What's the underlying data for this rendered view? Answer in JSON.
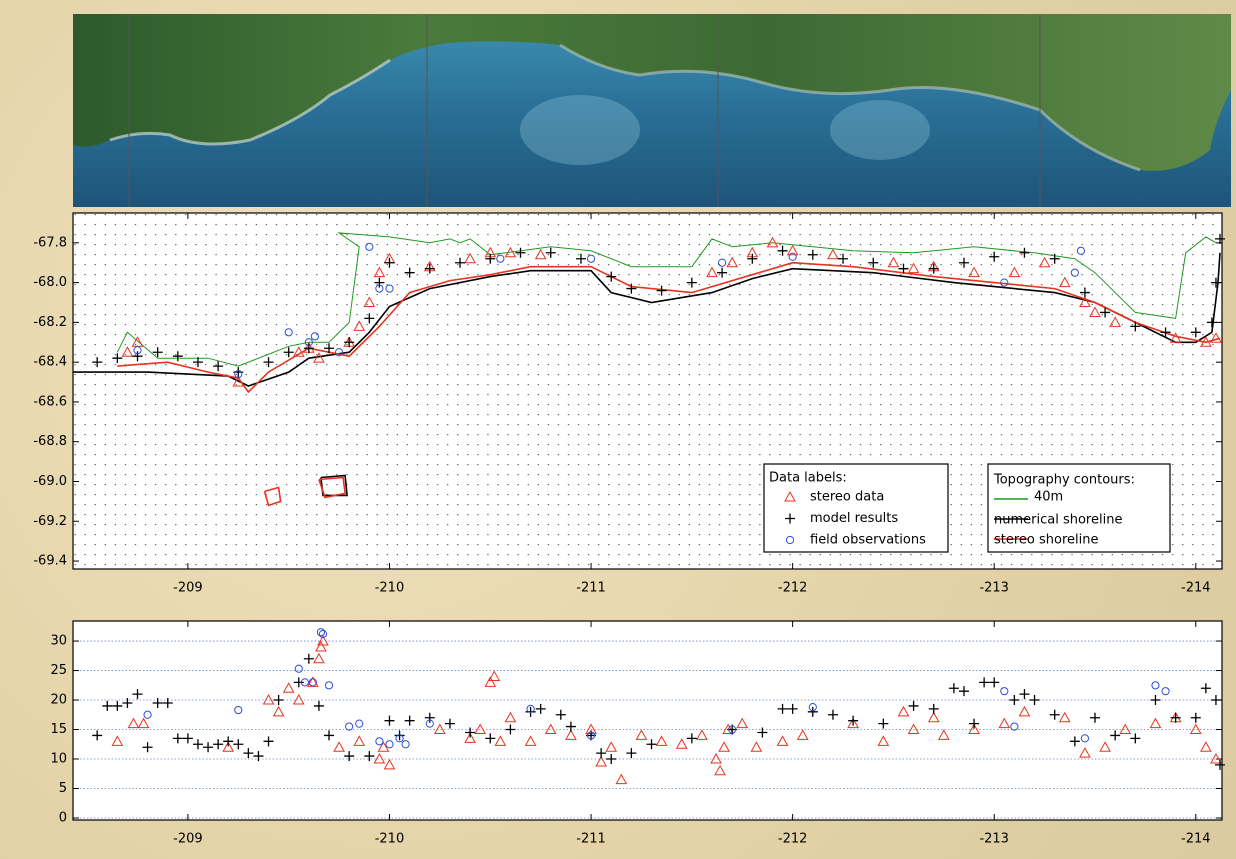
{
  "chart_data": [
    {
      "type": "map",
      "legend": "lower right",
      "grid": false,
      "xlim": [
        -208.43,
        -214.13
      ],
      "xticks": [
        -209,
        -210,
        -211,
        -212,
        -213,
        -214
      ],
      "ylim": [
        -69.44,
        -67.65
      ],
      "yticks": [
        -67.8,
        {
          "value": -68,
          "label": "-68.0"
        },
        -68.2,
        -68.4,
        -68.6,
        -68.8,
        {
          "value": -69,
          "label": "-69.0"
        },
        -69.2,
        -69.4
      ],
      "legend_title": "Data labels:",
      "series": [
        {
          "name": "stereo data",
          "color": "#e8331f",
          "marker": "triangle",
          "x": [
            -208.7,
            -208.75,
            -209.25,
            -209.55,
            -209.6,
            -209.65,
            -209.8,
            -209.85,
            -209.9,
            -209.95,
            -210.0,
            -210.2,
            -210.4,
            -210.5,
            -210.6,
            -210.75,
            -211.6,
            -211.7,
            -211.8,
            -211.9,
            -212.0,
            -212.2,
            -212.5,
            -212.6,
            -212.7,
            -212.9,
            -213.1,
            -213.25,
            -213.35,
            -213.45,
            -213.5,
            -213.6,
            -213.9,
            -214.05,
            -214.1
          ],
          "values": [
            -68.35,
            -68.3,
            -68.5,
            -68.35,
            -68.33,
            -68.38,
            -68.3,
            -68.22,
            -68.1,
            -67.95,
            -67.88,
            -67.92,
            -67.88,
            -67.85,
            -67.85,
            -67.86,
            -67.95,
            -67.9,
            -67.85,
            -67.8,
            -67.84,
            -67.86,
            -67.9,
            -67.93,
            -67.92,
            -67.95,
            -67.95,
            -67.9,
            -68.0,
            -68.1,
            -68.15,
            -68.2,
            -68.28,
            -68.3,
            -68.28
          ]
        },
        {
          "name": "model results",
          "color": "#000000",
          "marker": "plus",
          "x": [
            -208.55,
            -208.65,
            -208.75,
            -208.85,
            -208.95,
            -209.05,
            -209.15,
            -209.25,
            -209.4,
            -209.5,
            -209.6,
            -209.7,
            -209.8,
            -209.9,
            -209.95,
            -210.0,
            -210.1,
            -210.2,
            -210.35,
            -210.5,
            -210.65,
            -210.8,
            -210.95,
            -211.1,
            -211.2,
            -211.35,
            -211.5,
            -211.65,
            -211.8,
            -211.95,
            -212.1,
            -212.25,
            -212.4,
            -212.55,
            -212.7,
            -212.85,
            -213.0,
            -213.15,
            -213.3,
            -213.45,
            -213.55,
            -213.7,
            -213.85,
            -214.0,
            -214.08,
            -214.1,
            -214.12
          ],
          "values": [
            -68.4,
            -68.38,
            -68.37,
            -68.35,
            -68.37,
            -68.4,
            -68.42,
            -68.45,
            -68.4,
            -68.35,
            -68.33,
            -68.33,
            -68.3,
            -68.18,
            -68.0,
            -67.9,
            -67.95,
            -67.93,
            -67.9,
            -67.88,
            -67.85,
            -67.85,
            -67.88,
            -67.97,
            -68.03,
            -68.04,
            -68.0,
            -67.95,
            -67.88,
            -67.84,
            -67.86,
            -67.88,
            -67.9,
            -67.93,
            -67.93,
            -67.9,
            -67.87,
            -67.85,
            -67.88,
            -68.05,
            -68.15,
            -68.22,
            -68.25,
            -68.25,
            -68.2,
            -68.0,
            -67.78
          ]
        },
        {
          "name": "field observations",
          "color": "#2a4fd6",
          "marker": "circle",
          "x": [
            -208.75,
            -209.25,
            -209.5,
            -209.6,
            -209.63,
            -209.75,
            -209.9,
            -209.95,
            -210.0,
            -210.55,
            -211.0,
            -211.65,
            -212.0,
            -213.05,
            -213.4,
            -213.43
          ],
          "values": [
            -68.34,
            -68.46,
            -68.25,
            -68.3,
            -68.27,
            -68.35,
            -67.82,
            -68.03,
            -68.03,
            -67.88,
            -67.88,
            -67.9,
            -67.87,
            -68.0,
            -67.95,
            -67.84
          ]
        }
      ],
      "lines_legend_title": "Topography contours:",
      "lines": [
        {
          "name": "40m",
          "color": "#1f9a1f",
          "x": [
            -208.65,
            -208.7,
            -208.85,
            -209.1,
            -209.25,
            -209.5,
            -209.6,
            -209.7,
            -209.8,
            -209.85,
            -209.75,
            -210.0,
            -210.2,
            -210.3,
            -210.35,
            -210.4,
            -210.5,
            -210.8,
            -211.0,
            -211.2,
            -211.5,
            -211.6,
            -211.7,
            -211.9,
            -212.3,
            -212.6,
            -212.9,
            -213.2,
            -213.4,
            -213.5,
            -213.7,
            -213.9,
            -213.95,
            -214.05,
            -214.1
          ],
          "values": [
            -68.35,
            -68.25,
            -68.38,
            -68.38,
            -68.42,
            -68.32,
            -68.3,
            -68.3,
            -68.2,
            -67.82,
            -67.75,
            -67.77,
            -67.8,
            -67.78,
            -67.8,
            -67.78,
            -67.86,
            -67.82,
            -67.84,
            -67.92,
            -67.92,
            -67.78,
            -67.82,
            -67.8,
            -67.84,
            -67.85,
            -67.82,
            -67.85,
            -67.88,
            -67.95,
            -68.15,
            -68.18,
            -67.85,
            -67.77,
            -67.8
          ]
        },
        {
          "name": "numerical shoreline",
          "color": "#000000",
          "x": [
            -208.43,
            -208.8,
            -209.2,
            -209.3,
            -209.5,
            -209.6,
            -209.8,
            -209.9,
            -210.0,
            -210.2,
            -210.5,
            -210.7,
            -211.0,
            -211.1,
            -211.3,
            -211.6,
            -211.8,
            -212.0,
            -212.4,
            -212.8,
            -213.0,
            -213.3,
            -213.5,
            -213.7,
            -213.9,
            -214.0,
            -214.08,
            -214.11,
            -214.12,
            null,
            -209.66,
            -209.78,
            -209.79,
            -209.67,
            -209.66
          ],
          "values": [
            -68.45,
            -68.45,
            -68.47,
            -68.52,
            -68.45,
            -68.38,
            -68.35,
            -68.25,
            -68.12,
            -68.03,
            -67.97,
            -67.94,
            -67.94,
            -68.05,
            -68.1,
            -68.05,
            -67.98,
            -67.93,
            -67.95,
            -68.0,
            -68.02,
            -68.05,
            -68.1,
            -68.2,
            -68.3,
            -68.3,
            -68.25,
            -68.0,
            -67.85,
            null,
            -68.98,
            -68.97,
            -69.07,
            -69.07,
            -68.98
          ]
        },
        {
          "name": "stereo shoreline",
          "color": "#e8331f",
          "x": [
            -208.65,
            -208.9,
            -209.1,
            -209.25,
            -209.3,
            -209.4,
            -209.6,
            -209.8,
            -209.95,
            -210.1,
            -210.3,
            -210.5,
            -210.7,
            -211.0,
            -211.2,
            -211.5,
            -211.8,
            -212.0,
            -212.3,
            -212.7,
            -213.0,
            -213.3,
            -213.5,
            -213.7,
            -213.9,
            -214.05,
            -214.12,
            null,
            -209.38,
            -209.45,
            -209.46,
            -209.4,
            -209.38,
            null,
            -209.65,
            -209.77,
            -209.78,
            -209.68,
            -209.65
          ],
          "values": [
            -68.42,
            -68.4,
            -68.45,
            -68.48,
            -68.55,
            -68.45,
            -68.33,
            -68.37,
            -68.22,
            -68.05,
            -67.99,
            -67.96,
            -67.92,
            -67.92,
            -68.02,
            -68.05,
            -67.96,
            -67.9,
            -67.92,
            -67.97,
            -68.0,
            -68.03,
            -68.1,
            -68.2,
            -68.27,
            -68.3,
            -68.28,
            null,
            -69.05,
            -69.03,
            -69.1,
            -69.12,
            -69.05,
            null,
            -68.99,
            -68.98,
            -69.06,
            -69.08,
            -68.99
          ]
        }
      ]
    },
    {
      "type": "scatter",
      "grid": true,
      "xlim": [
        -208.43,
        -214.13
      ],
      "xticks": [
        -209,
        -210,
        -211,
        -212,
        -213,
        -214
      ],
      "ylim": [
        -0.34,
        33.4
      ],
      "yticks": [
        0,
        5,
        10,
        15,
        20,
        25,
        30
      ],
      "series": [
        {
          "color": "#e8331f",
          "marker": "triangle",
          "x": [
            -208.65,
            -208.73,
            -208.78,
            -209.2,
            -209.4,
            -209.45,
            -209.5,
            -209.55,
            -209.62,
            -209.65,
            -209.66,
            -209.67,
            -209.75,
            -209.85,
            -209.95,
            -209.97,
            -210.0,
            -210.25,
            -210.4,
            -210.45,
            -210.5,
            -210.52,
            -210.55,
            -210.6,
            -210.7,
            -210.8,
            -210.9,
            -211.0,
            -211.05,
            -211.1,
            -211.15,
            -211.25,
            -211.35,
            -211.45,
            -211.55,
            -211.62,
            -211.64,
            -211.66,
            -211.68,
            -211.75,
            -211.82,
            -211.95,
            -212.05,
            -212.3,
            -212.45,
            -212.55,
            -212.6,
            -212.7,
            -212.75,
            -212.9,
            -213.05,
            -213.15,
            -213.35,
            -213.45,
            -213.55,
            -213.65,
            -213.8,
            -213.9,
            -214.0,
            -214.05,
            -214.1
          ],
          "values": [
            13,
            16,
            16,
            12,
            20,
            18,
            22,
            20,
            23,
            27,
            29,
            30,
            12,
            13,
            10,
            12,
            9,
            15,
            13.5,
            15,
            23,
            24,
            13,
            17,
            13,
            15,
            14,
            15,
            9.5,
            12,
            6.5,
            14,
            13,
            12.5,
            14,
            10,
            8,
            12,
            15,
            16,
            12,
            13,
            14,
            16,
            13,
            18,
            15,
            17,
            14,
            15,
            16,
            18,
            17,
            11,
            12,
            15,
            16,
            17,
            15,
            12,
            10
          ]
        },
        {
          "color": "#000000",
          "marker": "plus",
          "x": [
            -208.55,
            -208.6,
            -208.65,
            -208.7,
            -208.75,
            -208.8,
            -208.85,
            -208.9,
            -208.95,
            -209.0,
            -209.05,
            -209.1,
            -209.15,
            -209.2,
            -209.25,
            -209.3,
            -209.35,
            -209.4,
            -209.45,
            -209.55,
            -209.6,
            -209.65,
            -209.7,
            -209.8,
            -209.9,
            -210.0,
            -210.05,
            -210.1,
            -210.2,
            -210.3,
            -210.4,
            -210.5,
            -210.6,
            -210.7,
            -210.75,
            -210.85,
            -210.9,
            -211.0,
            -211.05,
            -211.1,
            -211.2,
            -211.3,
            -211.5,
            -211.7,
            -211.85,
            -211.95,
            -212.0,
            -212.1,
            -212.2,
            -212.3,
            -212.45,
            -212.6,
            -212.7,
            -212.8,
            -212.85,
            -212.9,
            -212.95,
            -213.0,
            -213.1,
            -213.15,
            -213.2,
            -213.3,
            -213.4,
            -213.5,
            -213.6,
            -213.7,
            -213.8,
            -213.9,
            -214.0,
            -214.05,
            -214.1,
            -214.12
          ],
          "values": [
            14,
            19,
            19,
            19.5,
            21,
            12,
            19.5,
            19.5,
            13.5,
            13.5,
            12.5,
            12,
            12.5,
            13,
            12.5,
            11,
            10.5,
            13,
            20,
            23,
            27,
            19,
            14,
            10.5,
            10.5,
            16.5,
            14,
            16.5,
            17,
            16,
            14.5,
            13.5,
            15,
            18,
            18.5,
            17.5,
            15.5,
            14,
            11,
            10,
            11,
            12.5,
            13.5,
            15,
            14.5,
            18.5,
            18.5,
            18,
            17.5,
            16.5,
            16,
            19,
            18.5,
            22,
            21.5,
            16,
            23,
            23,
            20,
            21,
            20,
            17.5,
            13,
            17,
            14,
            13.5,
            20,
            17,
            17,
            22,
            20,
            9
          ]
        },
        {
          "color": "#2a4fd6",
          "marker": "circle",
          "x": [
            -208.8,
            -209.25,
            -209.55,
            -209.58,
            -209.62,
            -209.66,
            -209.67,
            -209.7,
            -209.8,
            -209.85,
            -209.95,
            -210.0,
            -210.05,
            -210.08,
            -210.2,
            -210.7,
            -211.0,
            -211.7,
            -212.1,
            -213.05,
            -213.1,
            -213.45,
            -213.8,
            -213.85
          ],
          "values": [
            17.5,
            18.3,
            25.3,
            23,
            23,
            31.5,
            31.2,
            22.5,
            15.5,
            16,
            13,
            12.5,
            13.5,
            12.5,
            16,
            18.5,
            14,
            15,
            18.8,
            21.5,
            15.5,
            13.5,
            22.5,
            21.5
          ]
        }
      ]
    }
  ]
}
